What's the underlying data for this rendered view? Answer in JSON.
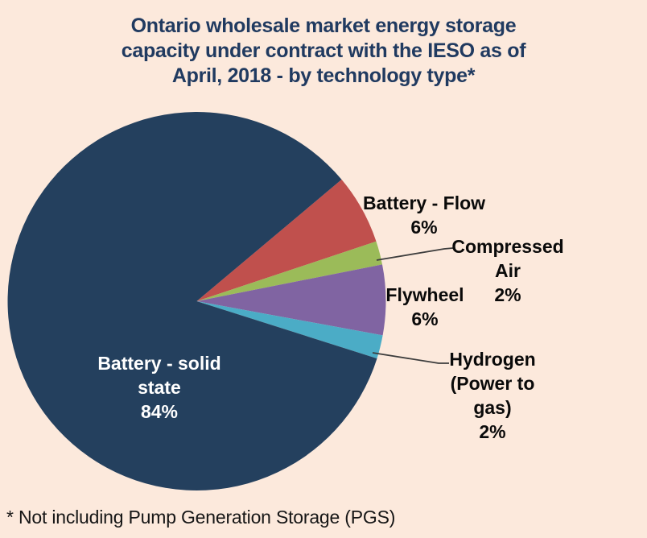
{
  "page": {
    "background_color": "#FCE9DC"
  },
  "chart_data": {
    "type": "pie",
    "title": "Ontario wholesale market energy storage capacity under contract with the IESO as of April, 2018 - by technology type*",
    "title_lines": [
      "Ontario wholesale market energy storage",
      "capacity under contract with the IESO as of",
      "April, 2018 - by technology type*"
    ],
    "footnote": "* Not including Pump Generation Storage (PGS)",
    "legend": "none",
    "start_angle_deg": 50,
    "series": [
      {
        "name": "Battery - Flow",
        "value": 6,
        "pct": "6%",
        "label": "Battery - Flow",
        "color": "#C0504D"
      },
      {
        "name": "Compressed Air",
        "value": 2,
        "pct": "2%",
        "label": "Compressed\nAir",
        "color": "#9BBB59"
      },
      {
        "name": "Flywheel",
        "value": 6,
        "pct": "6%",
        "label": "Flywheel",
        "color": "#8064A2"
      },
      {
        "name": "Hydrogen (Power to gas)",
        "value": 2,
        "pct": "2%",
        "label": "Hydrogen\n(Power to\ngas)",
        "color": "#4BACC6"
      },
      {
        "name": "Battery - solid state",
        "value": 84,
        "pct": "84%",
        "label": "Battery - solid\nstate",
        "color": "#24405E"
      }
    ],
    "colors": {
      "background": "#FCE9DC",
      "title_text": "#203A60",
      "label_text": "#0A0A0A",
      "label_text_on_dark": "#FFFFFF",
      "leader_line": "#3D3D3D"
    }
  }
}
